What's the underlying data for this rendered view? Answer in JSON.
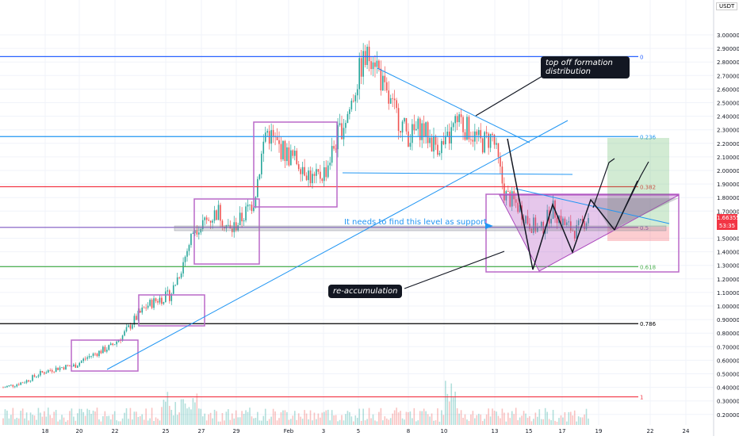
{
  "chart_data": {
    "type": "candlestick",
    "currency": "USDT",
    "price_axis_ticks": [
      "3.00000",
      "2.90000",
      "2.80000",
      "2.70000",
      "2.60000",
      "2.50000",
      "2.40000",
      "2.30000",
      "2.20000",
      "2.10000",
      "2.00000",
      "1.90000",
      "1.80000",
      "1.70000",
      "1.50000",
      "1.40000",
      "1.30000",
      "1.20000",
      "1.10000",
      "1.00000",
      "0.90000",
      "0.80000",
      "0.70000",
      "0.60000",
      "0.50000",
      "0.40000",
      "0.30000",
      "0.20000"
    ],
    "date_axis_ticks": [
      "18",
      "20",
      "22",
      "25",
      "27",
      "29",
      "Feb",
      "3",
      "5",
      "8",
      "10",
      "13",
      "15",
      "17",
      "19",
      "22",
      "24"
    ],
    "current_price": "1.66355",
    "countdown": "53:35",
    "fib_levels": [
      {
        "label": "0",
        "price": 2.84,
        "color": "#2962ff"
      },
      {
        "label": "0.236",
        "price": 2.25,
        "color": "#2196f3"
      },
      {
        "label": "0.382",
        "price": 1.88,
        "color": "#f23645"
      },
      {
        "label": "0.5",
        "price": 1.58,
        "color": "#7e57c2"
      },
      {
        "label": "0.618",
        "price": 1.29,
        "color": "#4caf50"
      },
      {
        "label": "0.786",
        "price": 0.87,
        "color": "#000000"
      },
      {
        "label": "1",
        "price": 0.33,
        "color": "#f23645"
      }
    ],
    "series_close": [
      0.4,
      0.42,
      0.45,
      0.5,
      0.53,
      0.55,
      0.56,
      0.62,
      0.66,
      0.7,
      0.78,
      0.9,
      1.0,
      1.05,
      1.08,
      1.3,
      1.58,
      1.62,
      1.7,
      1.55,
      1.65,
      1.78,
      2.3,
      2.18,
      2.1,
      2.05,
      1.92,
      2.0,
      2.25,
      2.45,
      2.78,
      2.88,
      2.55,
      2.4,
      2.25,
      2.32,
      2.2,
      2.18,
      2.35,
      2.3,
      2.2,
      2.25,
      1.82,
      1.75,
      1.62,
      1.55,
      1.72,
      1.6,
      1.55,
      1.66
    ]
  },
  "annotations": {
    "top_callout": "top off formation\ndistribution",
    "support_note": "It needs to find this level as support",
    "reaccumulation": "re-accumulation"
  }
}
